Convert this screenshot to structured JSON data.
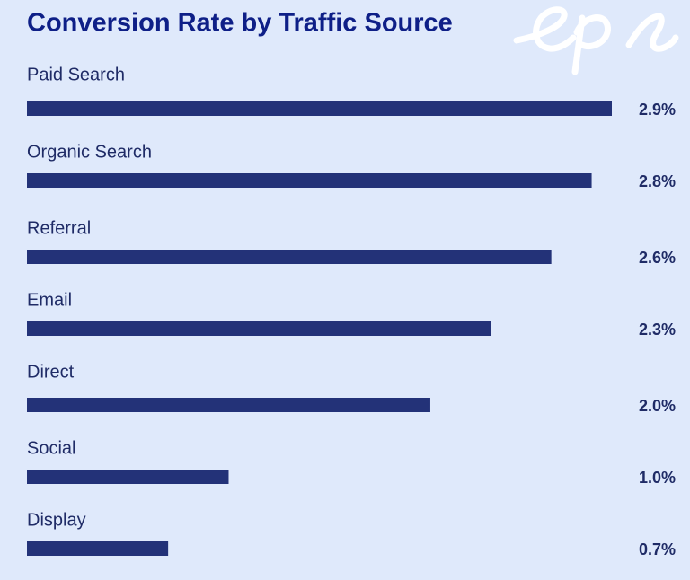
{
  "chart_data": {
    "type": "bar",
    "orientation": "horizontal",
    "title": "Conversion Rate by Traffic Source",
    "categories": [
      "Paid Search",
      "Organic Search",
      "Referral",
      "Email",
      "Direct",
      "Social",
      "Display"
    ],
    "values": [
      2.9,
      2.8,
      2.6,
      2.3,
      2.0,
      1.0,
      0.7
    ],
    "value_labels": [
      "2.9%",
      "2.8%",
      "2.6%",
      "2.3%",
      "2.0%",
      "1.0%",
      "0.7%"
    ],
    "color": "#233278"
  }
}
